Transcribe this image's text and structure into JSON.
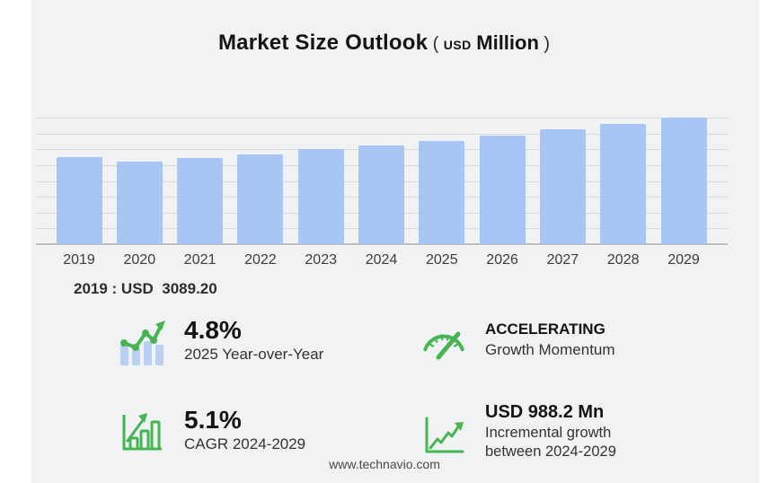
{
  "title": {
    "main": "Market Size Outlook",
    "paren_open": "(",
    "currency": "USD",
    "unit": "Million",
    "paren_close": ")"
  },
  "chart_data": {
    "type": "bar",
    "title": "Market Size Outlook (USD Million)",
    "unit": "USD Million",
    "categories": [
      "2019",
      "2020",
      "2021",
      "2022",
      "2023",
      "2024",
      "2025",
      "2026",
      "2027",
      "2028",
      "2029"
    ],
    "values": [
      3089.2,
      2940,
      3065,
      3195,
      3390,
      3500.5,
      3668.5,
      3855,
      4060,
      4270,
      4488.7
    ],
    "value_2019_labeled": "USD 3089.20",
    "ylim": [
      0,
      4489
    ],
    "grid": "horizontal",
    "gridline_count": 9,
    "legend": false,
    "bar_color": "#a8c5f3"
  },
  "annotation": {
    "text": "2019 : USD  3089.20"
  },
  "stats": [
    {
      "icon": "trend-bars-icon",
      "headline": "4.8%",
      "sub": "2025 Year-over-Year"
    },
    {
      "icon": "gauge-icon",
      "headline": "ACCELERATING",
      "sub": "Growth Momentum"
    },
    {
      "icon": "bar-growth-icon",
      "headline": "5.1%",
      "sub": "CAGR 2024-2029"
    },
    {
      "icon": "line-growth-icon",
      "headline": "USD 988.2 Mn",
      "sub": "Incremental growth between 2024-2029"
    }
  ],
  "footer": {
    "url": "www.technavio.com"
  },
  "colors": {
    "background": "#f1f2f4",
    "page_margin": "#ffffff",
    "bar": "#a8c5f3",
    "icon_green": "#45b552",
    "icon_blue": "#b9d0f2",
    "gridline": "#d7d8da",
    "text_dark": "#141414",
    "text_medium": "#333333"
  }
}
